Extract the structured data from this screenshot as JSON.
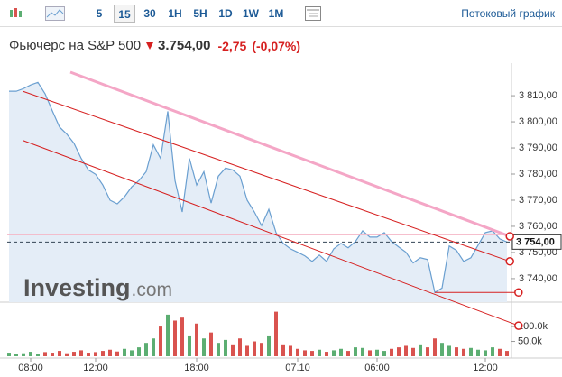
{
  "toolbar": {
    "intervals": [
      "5",
      "15",
      "30",
      "1H",
      "5H",
      "1D",
      "1W",
      "1M"
    ],
    "selected": 1,
    "stream_link": "Потоковый график"
  },
  "header": {
    "title": "Фьючерс на S&P 500",
    "price": "3.754,00",
    "change": "-2,75",
    "change_pct": "(-0,07%)"
  },
  "watermark": {
    "brand": "Investing",
    "suffix": ".com"
  },
  "chart_data": {
    "type": "area",
    "categories": [
      null,
      null,
      null,
      "08:00",
      null,
      null,
      null,
      null,
      null,
      null,
      null,
      null,
      "12:00",
      null,
      null,
      null,
      null,
      null,
      null,
      null,
      null,
      null,
      null,
      null,
      null,
      null,
      "18:00",
      null,
      null,
      null,
      null,
      null,
      null,
      null,
      null,
      null,
      null,
      null,
      null,
      null,
      "07.10",
      null,
      null,
      null,
      null,
      null,
      null,
      null,
      null,
      null,
      null,
      "06:00",
      null,
      null,
      null,
      null,
      null,
      null,
      null,
      null,
      null,
      null,
      null,
      null,
      null,
      null,
      "12:00",
      null,
      null,
      null
    ],
    "series": [
      {
        "color": "#6a9fd0",
        "values": [
          3811.7,
          3811.7,
          3812.7,
          3814.1,
          3815.1,
          3810.7,
          3804.2,
          3798,
          3795.3,
          3791.8,
          3786,
          3781.6,
          3779.9,
          3775.8,
          3770,
          3768.6,
          3771.3,
          3775.1,
          3777.5,
          3780.9,
          3791.2,
          3786,
          3804,
          3777.5,
          3765.5,
          3786,
          3775.8,
          3780.9,
          3768.9,
          3779.2,
          3782.3,
          3781.6,
          3779.2,
          3770,
          3765.5,
          3760.3,
          3766.5,
          3757.6,
          3753.5,
          3751.4,
          3750.1,
          3748.7,
          3746.6,
          3749,
          3746.6,
          3751.4,
          3753.5,
          3751.8,
          3754.2,
          3758.3,
          3755.9,
          3755.9,
          3757.6,
          3754.2,
          3752.1,
          3750.1,
          3746,
          3748,
          3747.3,
          3734.7,
          3736.4,
          3752.5,
          3750.8,
          3746.6,
          3748,
          3752.8,
          3757.6,
          3758.3,
          3755.2,
          3754
        ]
      }
    ],
    "ylim": [
      3731,
      3819
    ],
    "yticks": [
      {
        "value": 3740,
        "label": "3 740,00"
      },
      {
        "value": 3750,
        "label": "3 750,00"
      },
      {
        "value": 3760,
        "label": "3 760,00"
      },
      {
        "value": 3770,
        "label": "3 770,00"
      },
      {
        "value": 3780,
        "label": "3 780,00"
      },
      {
        "value": 3790,
        "label": "3 790,00"
      },
      {
        "value": 3800,
        "label": "3 800,00"
      },
      {
        "value": 3810,
        "label": "3 810,00"
      }
    ],
    "last": {
      "value": 3754,
      "label": "3 754,00"
    },
    "prev_close": 3756.75,
    "drawings": [
      {
        "x": [
          8.5,
          69.4
        ],
        "y": [
          3819,
          3756.2
        ],
        "color": "#f4a6c6",
        "width": 3
      },
      {
        "x": [
          1.9,
          69.4
        ],
        "y": [
          3811.7,
          3746.6
        ],
        "color": "#d62020",
        "width": 1
      },
      {
        "x": [
          1.9,
          70.6
        ],
        "y": [
          3792.9,
          3722
        ],
        "color": "#d62020",
        "width": 1
      },
      {
        "x": [
          59,
          70.6
        ],
        "y": [
          3734.7,
          3734.7
        ],
        "color": "#d62020",
        "width": 1
      }
    ],
    "volume": {
      "up_color": "#5cae72",
      "down_color": "#d9534f",
      "ylim": [
        0,
        167
      ],
      "yticks": [
        {
          "value": 50,
          "label": "50.0k"
        },
        {
          "value": 100,
          "label": "100.0k"
        }
      ],
      "values": [
        12,
        8,
        10,
        15,
        9,
        14,
        12,
        18,
        10,
        15,
        20,
        12,
        14,
        18,
        22,
        16,
        25,
        20,
        30,
        45,
        60,
        100,
        140,
        120,
        130,
        70,
        110,
        60,
        80,
        45,
        55,
        40,
        60,
        35,
        50,
        45,
        70,
        150,
        40,
        35,
        25,
        20,
        18,
        22,
        15,
        20,
        25,
        18,
        30,
        28,
        20,
        22,
        18,
        25,
        30,
        35,
        28,
        40,
        30,
        60,
        45,
        35,
        30,
        25,
        28,
        22,
        20,
        30,
        25,
        18
      ]
    }
  }
}
